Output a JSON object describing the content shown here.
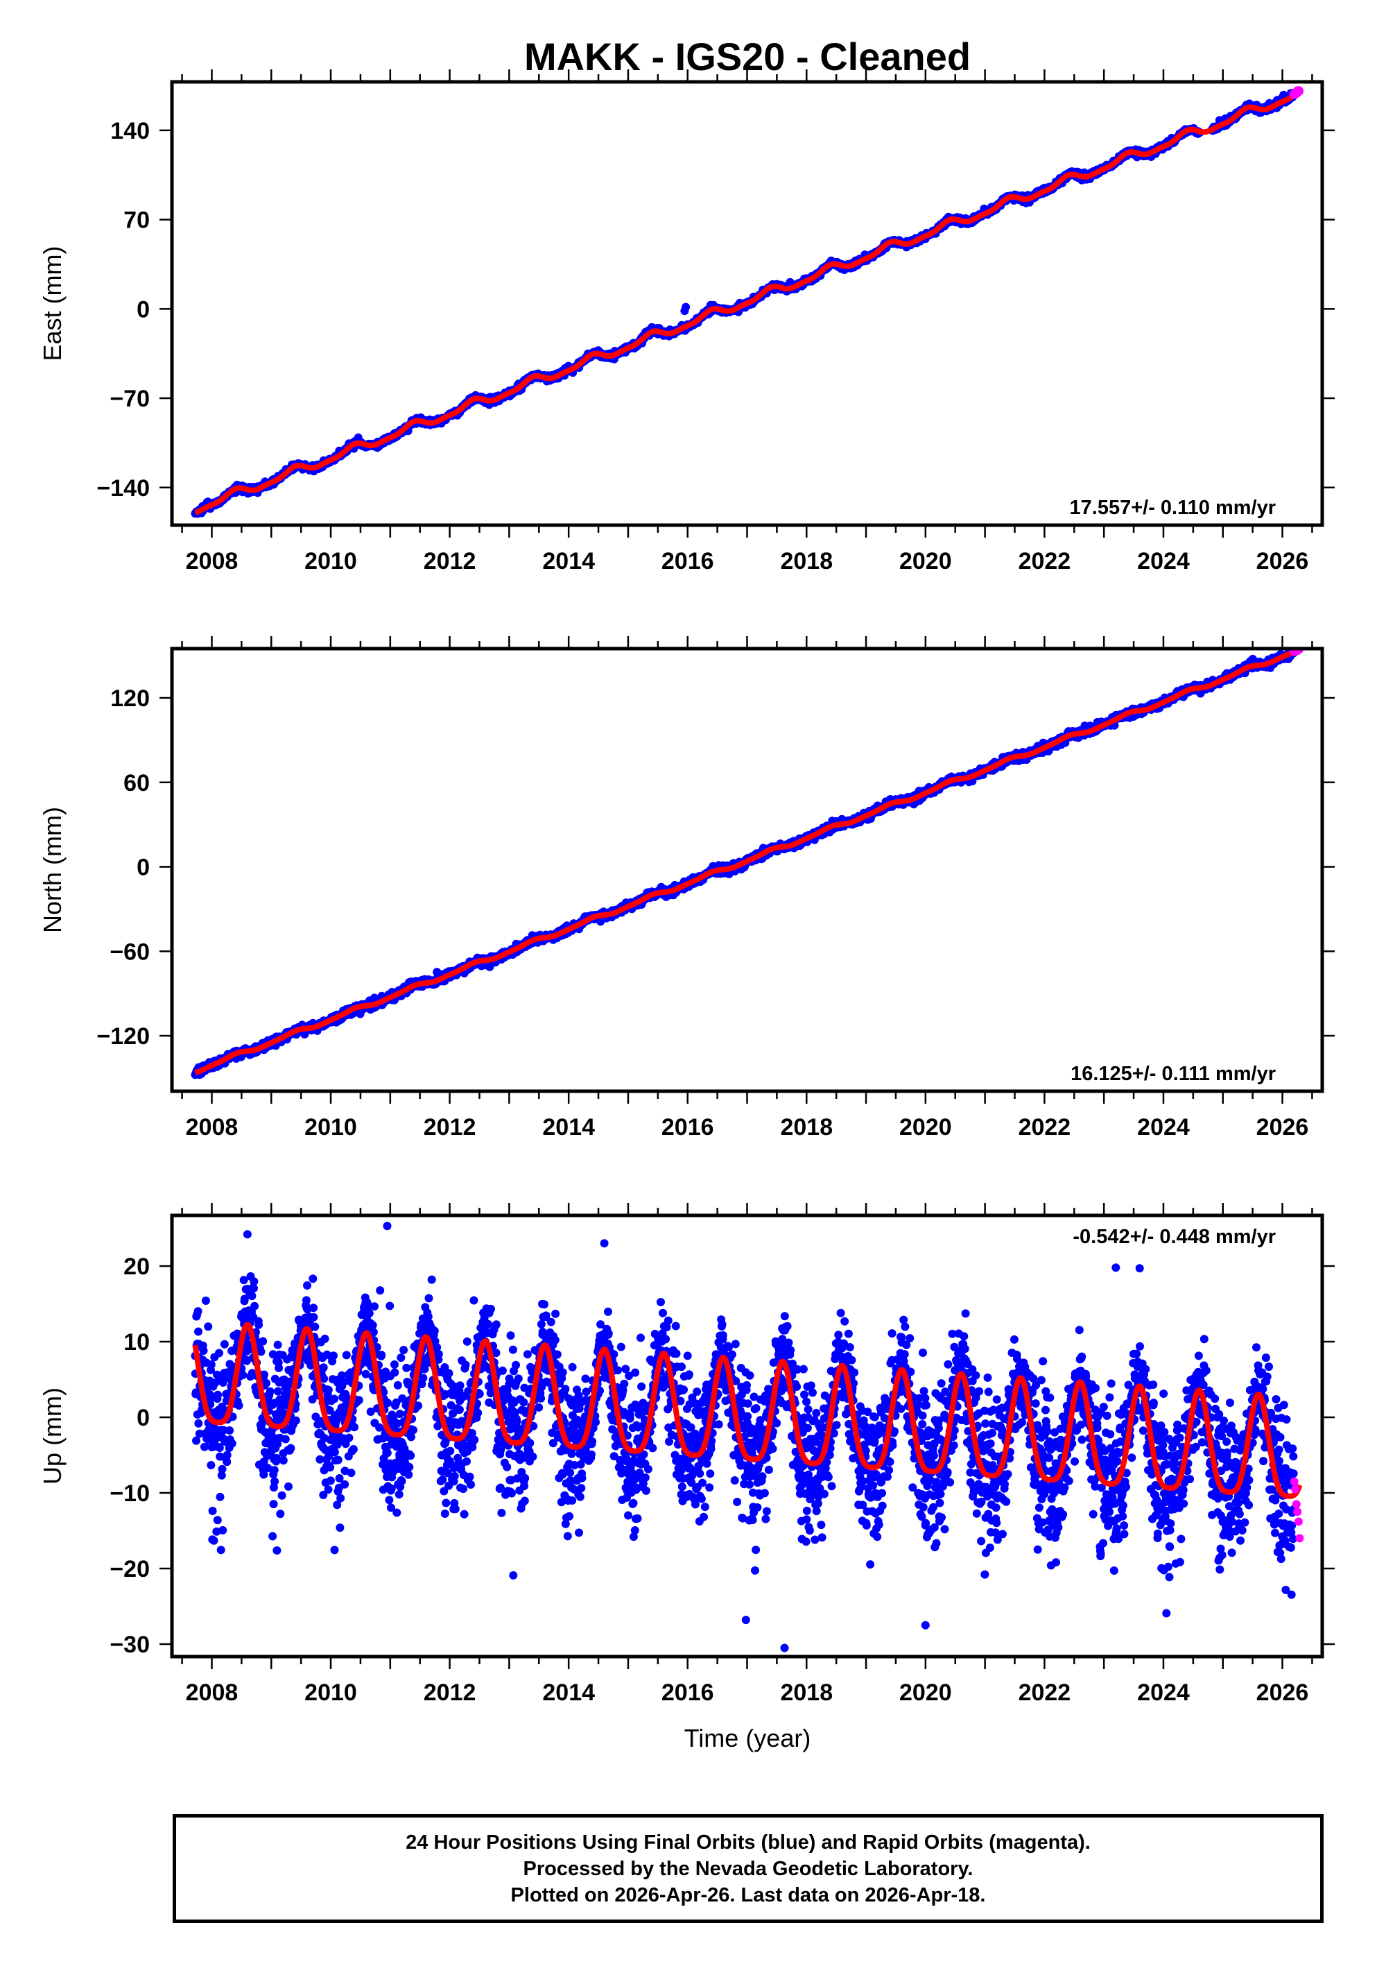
{
  "title": "MAKK  - IGS20 - Cleaned",
  "footer": {
    "lines": [
      "24 Hour Positions Using Final Orbits (blue) and Rapid Orbits (magenta).",
      "Processed by the Nevada Geodetic Laboratory.",
      "Plotted on 2026-Apr-26. Last data on 2026-Apr-18."
    ]
  },
  "colors": {
    "final_orbits": "#0000ff",
    "rapid_orbits": "#ff00ff",
    "fit_line": "#ff0000",
    "frame": "#000000"
  },
  "chart_data": [
    {
      "type": "scatter",
      "id": "east",
      "ylabel": "East (mm)",
      "xlabel": "",
      "xlim": [
        2007.33,
        2026.67
      ],
      "ylim": [
        -169.5,
        178
      ],
      "x_ticks": [
        2008,
        2010,
        2012,
        2014,
        2016,
        2018,
        2020,
        2022,
        2024,
        2026
      ],
      "x_tick_labels": [
        "2008",
        "2010",
        "2012",
        "2014",
        "2016",
        "2018",
        "2020",
        "2022",
        "2024",
        "2026"
      ],
      "x_minor_step": 0.5,
      "y_ticks": [
        -140,
        -70,
        0,
        70,
        140
      ],
      "y_tick_labels": [
        "−140",
        "−70",
        "0",
        "70",
        "140"
      ],
      "rate_text": "17.557+/- 0.110 mm/yr",
      "rate_position": "bottom-right",
      "model": {
        "t0": 2017.0,
        "offset": 6.0,
        "velocity": 17.557,
        "annual_cos": -2.2,
        "annual_sin": 2.2,
        "semiannual_cos": 0.6,
        "semiannual_sin": -0.9,
        "noise_sd": 1.3
      },
      "data_span": [
        2007.72,
        2026.29
      ],
      "rapid_span": [
        2026.2,
        2026.29
      ],
      "outliers": [
        [
          2015.95,
          -1.5
        ],
        [
          2015.97,
          1.5
        ]
      ]
    },
    {
      "type": "scatter",
      "id": "north",
      "ylabel": "North (mm)",
      "xlabel": "",
      "xlim": [
        2007.33,
        2026.67
      ],
      "ylim": [
        -159.4,
        155
      ],
      "x_ticks": [
        2008,
        2010,
        2012,
        2014,
        2016,
        2018,
        2020,
        2022,
        2024,
        2026
      ],
      "x_tick_labels": [
        "2008",
        "2010",
        "2012",
        "2014",
        "2016",
        "2018",
        "2020",
        "2022",
        "2024",
        "2026"
      ],
      "x_minor_step": 0.5,
      "y_ticks": [
        -120,
        -60,
        0,
        60,
        120
      ],
      "y_tick_labels": [
        "−120",
        "−60",
        "0",
        "60",
        "120"
      ],
      "rate_text": "16.125+/- 0.111 mm/yr",
      "rate_position": "bottom-right",
      "model": {
        "t0": 2017.0,
        "offset": 4.5,
        "velocity": 16.125,
        "annual_cos": -0.8,
        "annual_sin": 0.9,
        "semiannual_cos": 0.3,
        "semiannual_sin": -0.2,
        "noise_sd": 1.5
      },
      "data_span": [
        2007.72,
        2026.29
      ],
      "rapid_span": [
        2026.2,
        2026.29
      ],
      "outliers": []
    },
    {
      "type": "scatter",
      "id": "up",
      "ylabel": "Up (mm)",
      "xlabel": "Time (year)",
      "xlim": [
        2007.33,
        2026.67
      ],
      "ylim": [
        -31.65,
        26.7
      ],
      "x_ticks": [
        2008,
        2010,
        2012,
        2014,
        2016,
        2018,
        2020,
        2022,
        2024,
        2026
      ],
      "x_tick_labels": [
        "2008",
        "2010",
        "2012",
        "2014",
        "2016",
        "2018",
        "2020",
        "2022",
        "2024",
        "2026"
      ],
      "x_minor_step": 0.5,
      "y_ticks": [
        -30,
        -20,
        -10,
        0,
        10,
        20
      ],
      "y_tick_labels": [
        "−30",
        "−20",
        "−10",
        "0",
        "10",
        "20"
      ],
      "rate_text": "-0.542+/- 0.448 mm/yr",
      "rate_position": "top-right",
      "model": {
        "t0": 2017.0,
        "offset": -0.4,
        "velocity": -0.542,
        "annual_amp": 6.6,
        "annual_peak_phase": 0.6,
        "semiannual_amp": 1.5,
        "semiannual_peak_phase": 0.6,
        "noise_sd": 4.2
      },
      "data_span": [
        2007.72,
        2026.29
      ],
      "rapid_span": [
        2026.2,
        2026.29
      ],
      "rapid_values": [
        -8.5,
        -9.5,
        -11.5,
        -12.5,
        -13.8,
        -16.0
      ],
      "outliers": [
        [
          2010.95,
          25.3
        ],
        [
          2008.6,
          24.2
        ],
        [
          2017.63,
          -30.5
        ],
        [
          2020.0,
          -27.5
        ],
        [
          2016.98,
          -26.8
        ],
        [
          2023.2,
          19.8
        ],
        [
          2023.6,
          19.7
        ],
        [
          2014.6,
          23.0
        ]
      ]
    }
  ]
}
